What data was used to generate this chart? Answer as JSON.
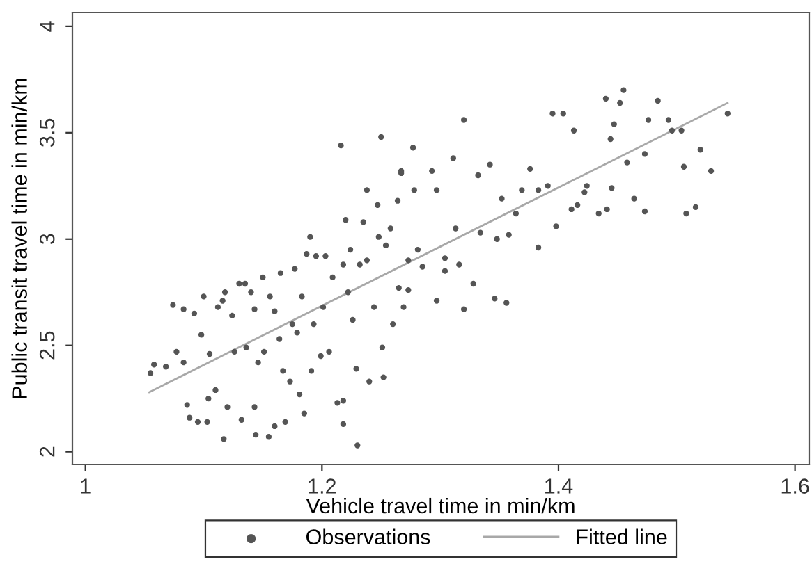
{
  "chart_data": {
    "type": "scatter",
    "xlabel": "Vehicle travel time in min/km",
    "ylabel": "Public transit travel time in min/km",
    "xlim": [
      0.989,
      1.612
    ],
    "ylim": [
      1.94,
      4.065
    ],
    "xticks": [
      1,
      1.2,
      1.4,
      1.6
    ],
    "yticks": [
      2,
      2.5,
      3,
      3.5,
      4
    ],
    "grid": false,
    "legend": "bottom",
    "marker": "circle",
    "series": [
      {
        "name": "Observations",
        "color": "#555555",
        "x": [
          1.055,
          1.058,
          1.068,
          1.074,
          1.077,
          1.083,
          1.083,
          1.086,
          1.088,
          1.092,
          1.095,
          1.098,
          1.1,
          1.103,
          1.104,
          1.105,
          1.11,
          1.112,
          1.116,
          1.117,
          1.118,
          1.12,
          1.124,
          1.126,
          1.13,
          1.132,
          1.135,
          1.136,
          1.14,
          1.143,
          1.143,
          1.144,
          1.146,
          1.15,
          1.151,
          1.155,
          1.156,
          1.16,
          1.16,
          1.164,
          1.165,
          1.167,
          1.169,
          1.173,
          1.175,
          1.177,
          1.179,
          1.181,
          1.183,
          1.185,
          1.187,
          1.19,
          1.191,
          1.193,
          1.195,
          1.199,
          1.201,
          1.203,
          1.206,
          1.209,
          1.213,
          1.216,
          1.218,
          1.218,
          1.218,
          1.22,
          1.222,
          1.224,
          1.226,
          1.229,
          1.23,
          1.232,
          1.235,
          1.238,
          1.238,
          1.24,
          1.244,
          1.247,
          1.248,
          1.25,
          1.251,
          1.252,
          1.254,
          1.258,
          1.26,
          1.264,
          1.265,
          1.267,
          1.269,
          1.273,
          1.277,
          1.278,
          1.267,
          1.297,
          1.293,
          1.297,
          1.311,
          1.32,
          1.32,
          1.328,
          1.304,
          1.304,
          1.316,
          1.313,
          1.332,
          1.342,
          1.334,
          1.346,
          1.356,
          1.348,
          1.352,
          1.364,
          1.358,
          1.369,
          1.376,
          1.383,
          1.383,
          1.391,
          1.395,
          1.404,
          1.398,
          1.413,
          1.411,
          1.416,
          1.422,
          1.424,
          1.434,
          1.44,
          1.441,
          1.444,
          1.445,
          1.447,
          1.452,
          1.455,
          1.458,
          1.464,
          1.473,
          1.473,
          1.476,
          1.484,
          1.493,
          1.496,
          1.504,
          1.506,
          1.508,
          1.516,
          1.52,
          1.529,
          1.543,
          1.273,
          1.285,
          1.281
        ],
        "values": [
          2.37,
          2.41,
          2.4,
          2.69,
          2.47,
          2.67,
          2.42,
          2.22,
          2.16,
          2.65,
          2.14,
          2.55,
          2.73,
          2.14,
          2.25,
          2.46,
          2.29,
          2.68,
          2.71,
          2.06,
          2.75,
          2.21,
          2.64,
          2.47,
          2.79,
          2.15,
          2.79,
          2.49,
          2.75,
          2.67,
          2.21,
          2.08,
          2.42,
          2.82,
          2.47,
          2.07,
          2.73,
          2.66,
          2.12,
          2.53,
          2.84,
          2.38,
          2.14,
          2.33,
          2.6,
          2.86,
          2.56,
          2.27,
          2.73,
          2.18,
          2.93,
          3.01,
          2.38,
          2.6,
          2.92,
          2.45,
          2.68,
          2.92,
          2.47,
          2.82,
          2.23,
          3.44,
          2.13,
          2.88,
          2.24,
          3.09,
          2.75,
          2.95,
          2.62,
          2.39,
          2.03,
          2.88,
          3.08,
          3.23,
          2.9,
          2.33,
          2.68,
          3.16,
          3.01,
          3.48,
          2.49,
          2.35,
          2.97,
          3.05,
          2.6,
          3.18,
          2.77,
          3.31,
          2.68,
          2.9,
          3.43,
          3.23,
          3.32,
          2.71,
          3.32,
          3.23,
          3.38,
          3.56,
          2.67,
          2.79,
          2.85,
          2.91,
          2.88,
          3.05,
          3.3,
          3.35,
          3.03,
          2.72,
          2.7,
          3.0,
          3.19,
          3.12,
          3.02,
          3.23,
          3.33,
          3.23,
          2.96,
          3.25,
          3.59,
          3.59,
          3.06,
          3.51,
          3.14,
          3.16,
          3.22,
          3.25,
          3.12,
          3.66,
          3.14,
          3.47,
          3.24,
          3.54,
          3.64,
          3.7,
          3.36,
          3.19,
          3.13,
          3.4,
          3.56,
          3.65,
          3.56,
          3.51,
          3.51,
          3.34,
          3.12,
          3.15,
          3.42,
          3.32,
          3.59,
          2.76,
          2.87,
          2.95
        ]
      },
      {
        "name": "Fitted line",
        "type": "line",
        "color": "#a8a8a8",
        "line_style": "solid",
        "marker": "none",
        "x": [
          1.054,
          1.543
        ],
        "values": [
          2.28,
          3.64
        ]
      }
    ]
  }
}
